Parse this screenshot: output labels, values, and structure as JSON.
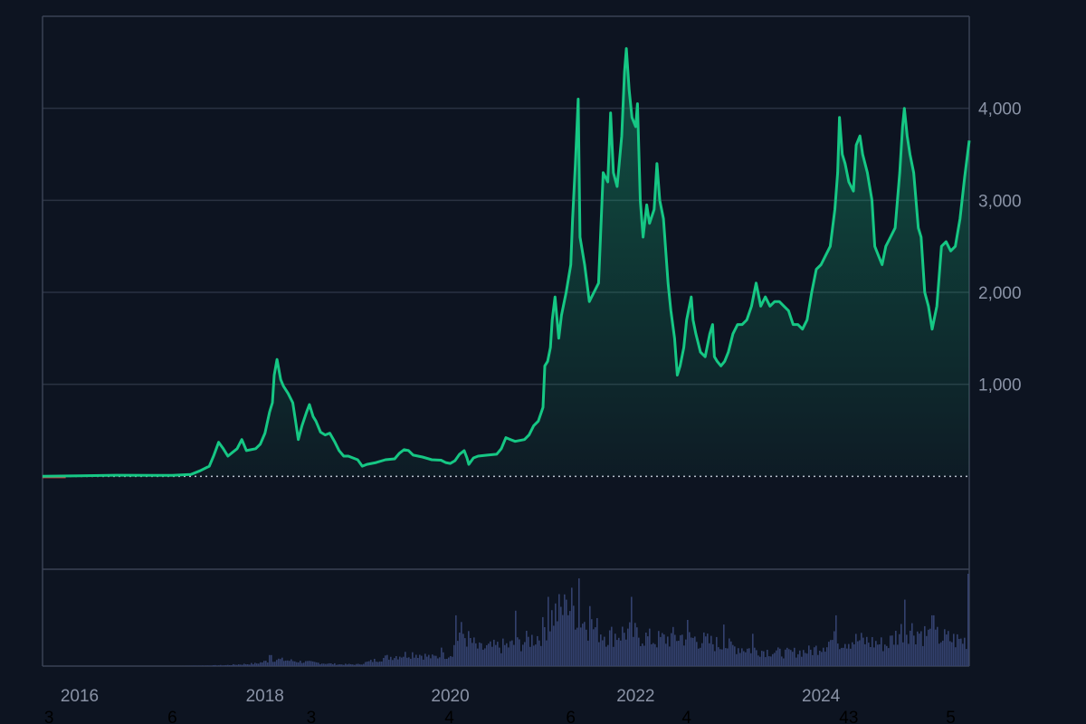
{
  "colors": {
    "background": "#0d1421",
    "grid": "#2a3242",
    "axis": "#3a4254",
    "line": "#16c784",
    "line_negative": "#ea3943",
    "volume": "#33416e",
    "baseline": "#b8c0cc"
  },
  "chart_data": {
    "type": "area",
    "title": "",
    "xlabel": "",
    "ylabel": "",
    "x_range": [
      2015.6,
      2025.6
    ],
    "y_range": [
      -1000,
      5000
    ],
    "baseline_value": 0,
    "x_ticks": [
      {
        "value": 2016,
        "label": "2016"
      },
      {
        "value": 2018,
        "label": "2018"
      },
      {
        "value": 2020,
        "label": "2020"
      },
      {
        "value": 2022,
        "label": "2022"
      },
      {
        "value": 2024,
        "label": "2024"
      }
    ],
    "y_ticks": [
      {
        "value": 1000,
        "label": "1,000"
      },
      {
        "value": 2000,
        "label": "2,000"
      },
      {
        "value": 3000,
        "label": "3,000"
      },
      {
        "value": 4000,
        "label": "4,000"
      }
    ],
    "bottom_annotations": [
      {
        "x": 2015.67,
        "label": "3"
      },
      {
        "x": 2017.0,
        "label": "6"
      },
      {
        "x": 2018.5,
        "label": "3"
      },
      {
        "x": 2019.99,
        "label": "4"
      },
      {
        "x": 2021.3,
        "label": "6"
      },
      {
        "x": 2022.55,
        "label": "4"
      },
      {
        "x": 2024.3,
        "label": "43"
      },
      {
        "x": 2025.4,
        "label": "5"
      }
    ],
    "price_series": {
      "name": "",
      "points": [
        [
          2015.6,
          1
        ],
        [
          2016.0,
          5
        ],
        [
          2016.4,
          12
        ],
        [
          2016.8,
          10
        ],
        [
          2017.0,
          10
        ],
        [
          2017.2,
          20
        ],
        [
          2017.3,
          60
        ],
        [
          2017.4,
          110
        ],
        [
          2017.45,
          230
        ],
        [
          2017.5,
          370
        ],
        [
          2017.55,
          300
        ],
        [
          2017.6,
          220
        ],
        [
          2017.7,
          300
        ],
        [
          2017.75,
          400
        ],
        [
          2017.8,
          280
        ],
        [
          2017.9,
          300
        ],
        [
          2017.95,
          350
        ],
        [
          2018.0,
          470
        ],
        [
          2018.05,
          700
        ],
        [
          2018.08,
          800
        ],
        [
          2018.1,
          1100
        ],
        [
          2018.13,
          1270
        ],
        [
          2018.17,
          1050
        ],
        [
          2018.2,
          980
        ],
        [
          2018.25,
          900
        ],
        [
          2018.3,
          800
        ],
        [
          2018.33,
          600
        ],
        [
          2018.36,
          400
        ],
        [
          2018.4,
          550
        ],
        [
          2018.45,
          700
        ],
        [
          2018.48,
          780
        ],
        [
          2018.52,
          650
        ],
        [
          2018.55,
          600
        ],
        [
          2018.6,
          480
        ],
        [
          2018.65,
          450
        ],
        [
          2018.7,
          470
        ],
        [
          2018.75,
          380
        ],
        [
          2018.8,
          280
        ],
        [
          2018.85,
          220
        ],
        [
          2018.9,
          220
        ],
        [
          2018.95,
          200
        ],
        [
          2019.0,
          180
        ],
        [
          2019.05,
          110
        ],
        [
          2019.1,
          130
        ],
        [
          2019.2,
          150
        ],
        [
          2019.3,
          180
        ],
        [
          2019.4,
          190
        ],
        [
          2019.45,
          250
        ],
        [
          2019.5,
          290
        ],
        [
          2019.55,
          280
        ],
        [
          2019.6,
          230
        ],
        [
          2019.7,
          210
        ],
        [
          2019.8,
          180
        ],
        [
          2019.9,
          175
        ],
        [
          2019.95,
          150
        ],
        [
          2020.0,
          140
        ],
        [
          2020.05,
          170
        ],
        [
          2020.1,
          240
        ],
        [
          2020.15,
          280
        ],
        [
          2020.18,
          200
        ],
        [
          2020.2,
          130
        ],
        [
          2020.25,
          200
        ],
        [
          2020.3,
          220
        ],
        [
          2020.4,
          230
        ],
        [
          2020.5,
          240
        ],
        [
          2020.55,
          300
        ],
        [
          2020.6,
          420
        ],
        [
          2020.65,
          400
        ],
        [
          2020.7,
          380
        ],
        [
          2020.8,
          400
        ],
        [
          2020.85,
          450
        ],
        [
          2020.9,
          550
        ],
        [
          2020.95,
          600
        ],
        [
          2021.0,
          750
        ],
        [
          2021.02,
          1200
        ],
        [
          2021.05,
          1250
        ],
        [
          2021.08,
          1400
        ],
        [
          2021.1,
          1700
        ],
        [
          2021.13,
          1950
        ],
        [
          2021.17,
          1500
        ],
        [
          2021.2,
          1750
        ],
        [
          2021.25,
          2000
        ],
        [
          2021.3,
          2300
        ],
        [
          2021.32,
          2800
        ],
        [
          2021.35,
          3400
        ],
        [
          2021.38,
          4100
        ],
        [
          2021.4,
          2600
        ],
        [
          2021.45,
          2300
        ],
        [
          2021.5,
          1900
        ],
        [
          2021.55,
          2000
        ],
        [
          2021.6,
          2100
        ],
        [
          2021.65,
          3300
        ],
        [
          2021.7,
          3200
        ],
        [
          2021.73,
          3950
        ],
        [
          2021.76,
          3300
        ],
        [
          2021.8,
          3150
        ],
        [
          2021.85,
          3700
        ],
        [
          2021.88,
          4400
        ],
        [
          2021.9,
          4650
        ],
        [
          2021.93,
          4200
        ],
        [
          2021.96,
          3900
        ],
        [
          2022.0,
          3800
        ],
        [
          2022.02,
          4050
        ],
        [
          2022.05,
          3000
        ],
        [
          2022.08,
          2600
        ],
        [
          2022.12,
          2950
        ],
        [
          2022.15,
          2750
        ],
        [
          2022.2,
          2900
        ],
        [
          2022.23,
          3400
        ],
        [
          2022.26,
          3000
        ],
        [
          2022.3,
          2800
        ],
        [
          2022.35,
          2100
        ],
        [
          2022.38,
          1800
        ],
        [
          2022.42,
          1500
        ],
        [
          2022.45,
          1100
        ],
        [
          2022.48,
          1200
        ],
        [
          2022.52,
          1400
        ],
        [
          2022.55,
          1700
        ],
        [
          2022.6,
          1950
        ],
        [
          2022.62,
          1700
        ],
        [
          2022.65,
          1550
        ],
        [
          2022.7,
          1350
        ],
        [
          2022.75,
          1300
        ],
        [
          2022.8,
          1550
        ],
        [
          2022.83,
          1650
        ],
        [
          2022.85,
          1300
        ],
        [
          2022.88,
          1250
        ],
        [
          2022.92,
          1200
        ],
        [
          2022.96,
          1250
        ],
        [
          2023.0,
          1350
        ],
        [
          2023.05,
          1550
        ],
        [
          2023.1,
          1650
        ],
        [
          2023.15,
          1650
        ],
        [
          2023.2,
          1700
        ],
        [
          2023.25,
          1850
        ],
        [
          2023.3,
          2100
        ],
        [
          2023.35,
          1850
        ],
        [
          2023.4,
          1950
        ],
        [
          2023.45,
          1850
        ],
        [
          2023.5,
          1900
        ],
        [
          2023.55,
          1900
        ],
        [
          2023.6,
          1850
        ],
        [
          2023.65,
          1800
        ],
        [
          2023.7,
          1650
        ],
        [
          2023.75,
          1650
        ],
        [
          2023.8,
          1600
        ],
        [
          2023.85,
          1700
        ],
        [
          2023.9,
          2000
        ],
        [
          2023.95,
          2250
        ],
        [
          2024.0,
          2300
        ],
        [
          2024.05,
          2400
        ],
        [
          2024.1,
          2500
        ],
        [
          2024.15,
          2900
        ],
        [
          2024.18,
          3300
        ],
        [
          2024.2,
          3900
        ],
        [
          2024.23,
          3500
        ],
        [
          2024.26,
          3400
        ],
        [
          2024.3,
          3200
        ],
        [
          2024.35,
          3100
        ],
        [
          2024.38,
          3600
        ],
        [
          2024.42,
          3700
        ],
        [
          2024.45,
          3500
        ],
        [
          2024.5,
          3300
        ],
        [
          2024.55,
          3000
        ],
        [
          2024.58,
          2500
        ],
        [
          2024.62,
          2400
        ],
        [
          2024.66,
          2300
        ],
        [
          2024.7,
          2500
        ],
        [
          2024.75,
          2600
        ],
        [
          2024.8,
          2700
        ],
        [
          2024.85,
          3300
        ],
        [
          2024.88,
          3800
        ],
        [
          2024.9,
          4000
        ],
        [
          2024.93,
          3700
        ],
        [
          2024.96,
          3500
        ],
        [
          2025.0,
          3300
        ],
        [
          2025.05,
          2700
        ],
        [
          2025.08,
          2600
        ],
        [
          2025.12,
          2000
        ],
        [
          2025.16,
          1850
        ],
        [
          2025.2,
          1600
        ],
        [
          2025.25,
          1850
        ],
        [
          2025.3,
          2500
        ],
        [
          2025.35,
          2550
        ],
        [
          2025.4,
          2450
        ],
        [
          2025.45,
          2500
        ],
        [
          2025.5,
          2800
        ],
        [
          2025.55,
          3250
        ],
        [
          2025.6,
          3650
        ]
      ]
    },
    "volume_series": {
      "name": "",
      "x_start": 2015.6,
      "x_end": 2025.6,
      "y_range": [
        0,
        1
      ],
      "profile": [
        [
          2015.6,
          0.0
        ],
        [
          2017.0,
          0.0
        ],
        [
          2017.55,
          0.01
        ],
        [
          2017.9,
          0.03
        ],
        [
          2018.1,
          0.08
        ],
        [
          2018.4,
          0.05
        ],
        [
          2018.8,
          0.02
        ],
        [
          2019.0,
          0.02
        ],
        [
          2019.3,
          0.1
        ],
        [
          2019.6,
          0.15
        ],
        [
          2019.8,
          0.1
        ],
        [
          2020.0,
          0.14
        ],
        [
          2020.1,
          0.4
        ],
        [
          2020.3,
          0.2
        ],
        [
          2020.7,
          0.25
        ],
        [
          2020.95,
          0.35
        ],
        [
          2021.1,
          0.6
        ],
        [
          2021.3,
          0.7
        ],
        [
          2021.45,
          0.5
        ],
        [
          2021.7,
          0.35
        ],
        [
          2021.9,
          0.4
        ],
        [
          2022.2,
          0.3
        ],
        [
          2022.5,
          0.35
        ],
        [
          2022.9,
          0.25
        ],
        [
          2023.2,
          0.2
        ],
        [
          2023.6,
          0.15
        ],
        [
          2023.9,
          0.18
        ],
        [
          2024.1,
          0.3
        ],
        [
          2024.4,
          0.3
        ],
        [
          2024.7,
          0.25
        ],
        [
          2024.9,
          0.45
        ],
        [
          2025.2,
          0.35
        ],
        [
          2025.45,
          0.3
        ],
        [
          2025.6,
          0.3
        ]
      ],
      "spikes": [
        [
          2018.05,
          0.12
        ],
        [
          2019.9,
          0.2
        ],
        [
          2020.05,
          0.55
        ],
        [
          2020.7,
          0.6
        ],
        [
          2021.05,
          0.75
        ],
        [
          2021.25,
          0.72
        ],
        [
          2021.38,
          0.95
        ],
        [
          2021.5,
          0.65
        ],
        [
          2021.95,
          0.75
        ],
        [
          2022.55,
          0.5
        ],
        [
          2022.95,
          0.45
        ],
        [
          2023.25,
          0.35
        ],
        [
          2024.15,
          0.55
        ],
        [
          2024.9,
          0.72
        ],
        [
          2025.2,
          0.55
        ],
        [
          2025.59,
          1.0
        ]
      ]
    }
  }
}
